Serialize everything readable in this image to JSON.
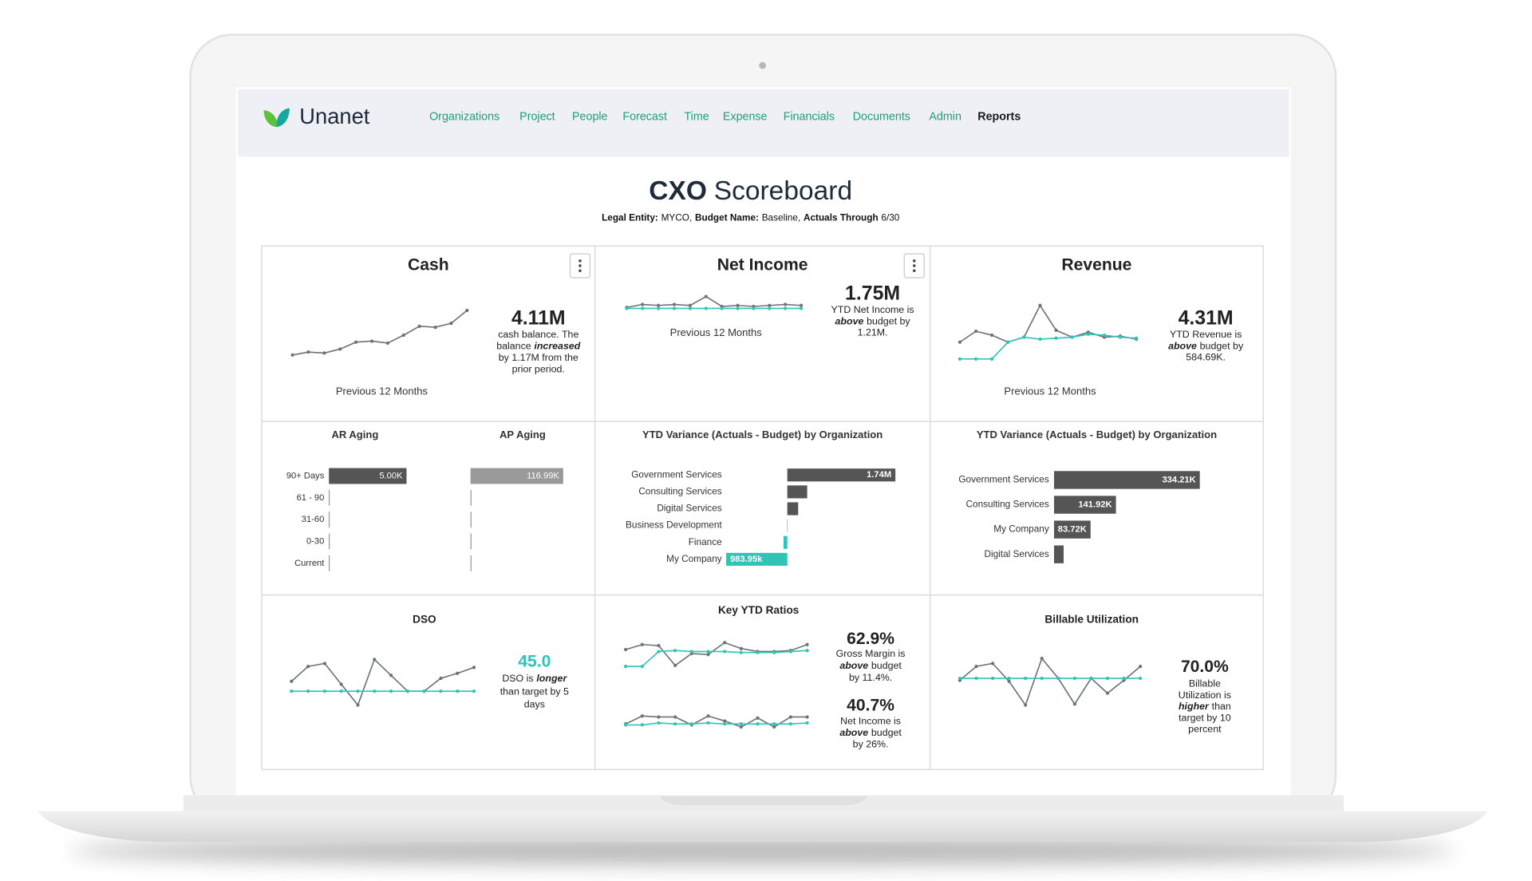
{
  "nav": {
    "logo": "Unanet",
    "links": [
      "Organizations",
      "Project",
      "People",
      "Forecast",
      "Time",
      "Expense",
      "Financials",
      "Documents",
      "Admin",
      "Reports"
    ],
    "active": 9
  },
  "header": {
    "title_strong": "CXO",
    "title_rest": "Scoreboard",
    "subtitle": [
      {
        "label": "Legal Entity:",
        "value": "MYCO,"
      },
      {
        "label": "Budget Name:",
        "value": "Baseline,"
      },
      {
        "label": "Actuals Through",
        "value": "6/30"
      }
    ]
  },
  "sparklines": {
    "cash": {
      "title": "Cash",
      "caption": "Previous 12 Months",
      "kpi_color": "#222",
      "charts": [
        {
          "kpi": "4.11M",
          "description": [
            [
              "cash balance. The"
            ],
            [
              "balance",
              {
                "em": "increased"
              }
            ],
            [
              "by 1.17M from the"
            ],
            [
              "prior period."
            ]
          ],
          "series": [
            {
              "color": "#6b7378",
              "values": [
                2,
                5,
                4,
                8,
                15,
                16,
                14,
                22,
                31,
                30,
                34,
                47
              ]
            }
          ]
        }
      ]
    },
    "net_income": {
      "title": "Net Income",
      "caption": "Previous 12 Months",
      "kpi_color": "#222",
      "charts": [
        {
          "kpi": "1.75M",
          "description": [
            [
              "YTD Net Income is"
            ],
            [
              {
                "em": "above"
              },
              "budget by"
            ],
            [
              "1.21M."
            ]
          ],
          "series": [
            {
              "color": "#6b7378",
              "values": [
                10,
                13,
                12,
                13,
                12,
                21,
                11,
                12,
                11,
                12,
                13,
                12
              ]
            },
            {
              "color": "#2ec4b6",
              "values": [
                9,
                9,
                9,
                9,
                9,
                9,
                9,
                9,
                9,
                9,
                9,
                9
              ]
            }
          ]
        }
      ]
    },
    "revenue": {
      "title": "Revenue",
      "caption": "Previous 12 Months",
      "kpi_color": "#222",
      "charts": [
        {
          "kpi": "4.31M",
          "description": [
            [
              "YTD Revenue is"
            ],
            [
              {
                "em": "above"
              },
              "budget by"
            ],
            [
              "584.69K."
            ]
          ],
          "series": [
            {
              "color": "#6b7378",
              "values": [
                25,
                36,
                32,
                25,
                30,
                62,
                37,
                30,
                35,
                30,
                31,
                28
              ]
            },
            {
              "color": "#2ec4b6",
              "values": [
                8,
                8,
                8,
                25,
                30,
                28,
                29,
                30,
                33,
                32,
                30,
                29
              ]
            }
          ]
        }
      ]
    },
    "dso": {
      "title": "DSO",
      "kpi_color": "#2ec4b6",
      "charts": [
        {
          "kpi": "45.0",
          "description": [
            [
              "DSO is",
              {
                "em": "longer"
              }
            ],
            [
              "than target by 5"
            ],
            [
              "days"
            ]
          ],
          "series": [
            {
              "color": "#6b7378",
              "values": [
                33,
                48,
                51,
                30,
                9,
                55,
                39,
                23,
                23,
                36,
                41,
                47
              ]
            },
            {
              "color": "#2ec4b6",
              "values": [
                23,
                23,
                23,
                23,
                23,
                23,
                23,
                23,
                23,
                23,
                23,
                23
              ]
            }
          ]
        }
      ]
    },
    "key_ratios": {
      "title": "Key YTD Ratios",
      "kpi_color": "#222",
      "charts": [
        {
          "kpi": "62.9%",
          "description": [
            [
              "Gross Margin is"
            ],
            [
              {
                "em": "above"
              },
              "budget"
            ],
            [
              "by 11.4%."
            ]
          ],
          "series": [
            {
              "color": "#6b7378",
              "values": [
                25,
                30,
                29,
                9,
                21,
                20,
                32,
                26,
                23,
                23,
                24,
                30
              ]
            },
            {
              "color": "#2ec4b6",
              "values": [
                8,
                8,
                23,
                24,
                23,
                23,
                23,
                22,
                22,
                22,
                23,
                24
              ]
            }
          ]
        },
        {
          "kpi": "40.7%",
          "description": [
            [
              "Net Income is"
            ],
            [
              {
                "em": "above"
              },
              "budget"
            ],
            [
              "by 26%."
            ]
          ],
          "series": [
            {
              "color": "#6b7378",
              "values": [
                10,
                18,
                17,
                17,
                9,
                18,
                13,
                7,
                16,
                7,
                17,
                17
              ]
            },
            {
              "color": "#2ec4b6",
              "values": [
                9,
                9,
                11,
                10,
                10,
                11,
                10,
                10,
                10,
                10,
                10,
                11
              ]
            }
          ]
        }
      ]
    },
    "billable": {
      "title": "Billable Utilization",
      "kpi_color": "#222",
      "charts": [
        {
          "kpi": "70.0%",
          "description": [
            [
              "Billable"
            ],
            [
              "Utilization is"
            ],
            [
              {
                "em": "higher"
              },
              "than"
            ],
            [
              "target by 10"
            ],
            [
              "percent"
            ]
          ],
          "series": [
            {
              "color": "#6b7378",
              "values": [
                34,
                48,
                51,
                33,
                9,
                56,
                36,
                10,
                36,
                21,
                34,
                48
              ]
            },
            {
              "color": "#2ec4b6",
              "values": [
                36,
                36,
                36,
                36,
                36,
                36,
                36,
                36,
                36,
                36,
                36,
                36
              ]
            }
          ]
        }
      ]
    }
  },
  "bars": {
    "aging": {
      "categories": [
        "90+ Days",
        "61 - 90",
        "31-60",
        "0-30",
        "Current"
      ],
      "charts": [
        {
          "title": "AR Aging",
          "color": "#555555",
          "values": [
            5000,
            0,
            0,
            0,
            0
          ],
          "value_labels": [
            "5.00K",
            null,
            null,
            null,
            null
          ]
        },
        {
          "title": "AP Aging",
          "color": "#9a9a9a",
          "values": [
            116990,
            0,
            0,
            0,
            0
          ],
          "value_labels": [
            "116.99K",
            null,
            null,
            null,
            null
          ]
        }
      ]
    },
    "variance_1": {
      "title": "YTD Variance (Actuals - Budget) by Organization",
      "categories": [
        "Government Services",
        "Consulting Services",
        "Digital Services",
        "Business Development",
        "Finance",
        "My Company"
      ],
      "values": [
        1740000,
        320000,
        175000,
        5000,
        -60000,
        -983950
      ],
      "value_labels": [
        "1.74M",
        null,
        null,
        null,
        null,
        "983.95k"
      ],
      "positive_color": "#555555",
      "negative_color": "#2ec4b6"
    },
    "variance_2": {
      "title": "YTD Variance (Actuals - Budget) by Organization",
      "categories": [
        "Government Services",
        "Consulting Services",
        "My Company",
        "Digital Services"
      ],
      "values": [
        334210,
        141920,
        83720,
        22000
      ],
      "value_labels": [
        "334.21K",
        "141.92K",
        "83.72K",
        null
      ],
      "positive_color": "#555555",
      "negative_color": "#2ec4b6"
    }
  }
}
